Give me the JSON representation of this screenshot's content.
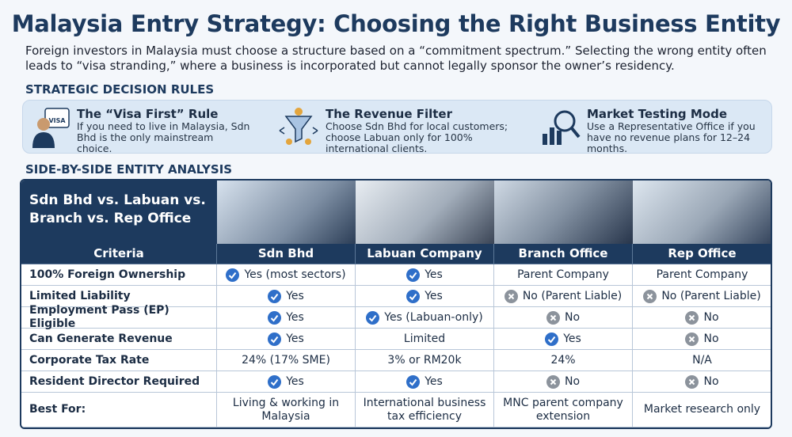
{
  "header": {
    "title": "Malaysia Entry Strategy: Choosing the Right Business Entity",
    "intro": "Foreign investors in Malaysia must choose a structure based on a “commitment spectrum.” Selecting the wrong entity often leads to “visa stranding,” where a business is incorporated but cannot legally sponsor the owner’s residency."
  },
  "rules": {
    "heading": "STRATEGIC DECISION RULES",
    "items": [
      {
        "title": "The “Visa First” Rule",
        "text": "If you need to live in Malaysia, Sdn Bhd is the only mainstream choice.",
        "badge": "VISA"
      },
      {
        "title": "The Revenue Filter",
        "text": "Choose Sdn Bhd for local customers; choose Labuan only for 100% international clients."
      },
      {
        "title": "Market Testing Mode",
        "text": "Use a Representative Office if you have no revenue plans for 12–24 months."
      }
    ]
  },
  "analysis": {
    "heading": "SIDE-BY-SIDE ENTITY ANALYSIS"
  },
  "table": {
    "corner": "Sdn Bhd vs. Labuan vs. Branch vs. Rep Office",
    "columns": [
      "Criteria",
      "Sdn Bhd",
      "Labuan Company",
      "Branch Office",
      "Rep Office"
    ],
    "rows": [
      {
        "criterion": "100% Foreign Ownership",
        "cells": [
          {
            "text": "Yes (most sectors)",
            "icon": "check"
          },
          {
            "text": "Yes",
            "icon": "check"
          },
          {
            "text": "Parent Company"
          },
          {
            "text": "Parent Company"
          }
        ]
      },
      {
        "criterion": "Limited Liability",
        "cells": [
          {
            "text": "Yes",
            "icon": "check"
          },
          {
            "text": "Yes",
            "icon": "check"
          },
          {
            "text": "No (Parent Liable)",
            "icon": "cross"
          },
          {
            "text": "No (Parent Liable)",
            "icon": "cross"
          }
        ]
      },
      {
        "criterion": "Employment Pass (EP) Eligible",
        "cells": [
          {
            "text": "Yes",
            "icon": "check"
          },
          {
            "text": "Yes (Labuan-only)",
            "icon": "check"
          },
          {
            "text": "No",
            "icon": "cross"
          },
          {
            "text": "No",
            "icon": "cross"
          }
        ]
      },
      {
        "criterion": "Can Generate Revenue",
        "cells": [
          {
            "text": "Yes",
            "icon": "check"
          },
          {
            "text": "Limited"
          },
          {
            "text": "Yes",
            "icon": "check"
          },
          {
            "text": "No",
            "icon": "cross"
          }
        ]
      },
      {
        "criterion": "Corporate Tax Rate",
        "cells": [
          {
            "text": "24% (17% SME)"
          },
          {
            "text": "3% or RM20k"
          },
          {
            "text": "24%"
          },
          {
            "text": "N/A"
          }
        ]
      },
      {
        "criterion": "Resident Director Required",
        "cells": [
          {
            "text": "Yes",
            "icon": "check"
          },
          {
            "text": "Yes",
            "icon": "check"
          },
          {
            "text": "No",
            "icon": "cross"
          },
          {
            "text": "No",
            "icon": "cross"
          }
        ]
      },
      {
        "criterion": "Best For:",
        "cells": [
          {
            "text": "Living & working in Malaysia"
          },
          {
            "text": "International business tax efficiency"
          },
          {
            "text": "MNC parent company extension"
          },
          {
            "text": "Market research only"
          }
        ]
      }
    ]
  }
}
